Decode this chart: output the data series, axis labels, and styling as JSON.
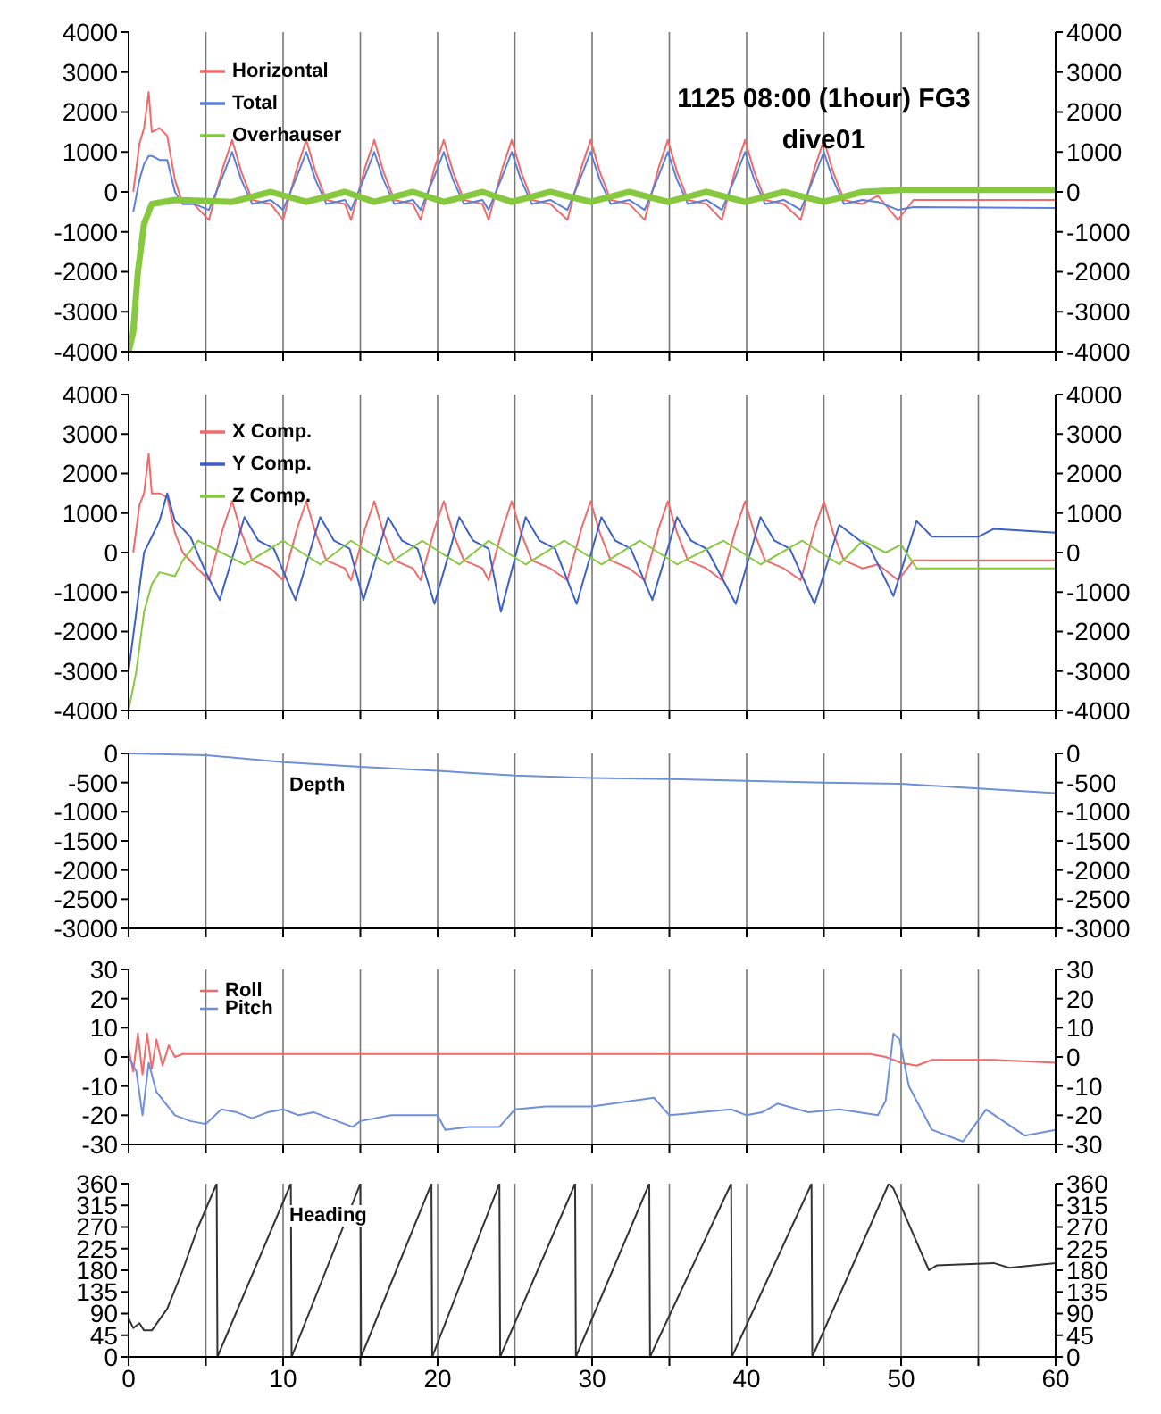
{
  "chart_data": [
    {
      "type": "line",
      "title": "1125 08:00 (1hour) FG3",
      "subtitle": "dive01",
      "legend": "top left",
      "grid": "x",
      "tick_labels": "y",
      "x": [
        0.3,
        0.7,
        1.0,
        1.3,
        1.5,
        2.0,
        2.5,
        3.0,
        3.5,
        4.2,
        5.2,
        6.1,
        6.7,
        7.3,
        8.0,
        9.2,
        10.0,
        10.9,
        11.5,
        12.1,
        12.8,
        14.0,
        14.4,
        15.3,
        15.9,
        16.5,
        17.2,
        18.4,
        18.9,
        19.8,
        20.4,
        21.0,
        21.7,
        22.9,
        23.3,
        24.2,
        24.8,
        25.4,
        26.1,
        27.3,
        28.4,
        29.3,
        29.9,
        30.5,
        31.2,
        32.4,
        33.4,
        34.3,
        34.9,
        35.5,
        36.2,
        37.4,
        38.4,
        39.3,
        39.9,
        40.5,
        41.2,
        42.4,
        43.5,
        44.4,
        45.0,
        45.6,
        46.3,
        47.5,
        48.5,
        49.8,
        50.8,
        60
      ],
      "series": [
        {
          "name": "Horizontal",
          "color": "#f06a6a",
          "values": [
            0,
            1200,
            1600,
            2500,
            1500,
            1600,
            1400,
            300,
            -300,
            -300,
            -700,
            600,
            1300,
            500,
            -200,
            -300,
            -700,
            600,
            1300,
            500,
            -200,
            -300,
            -700,
            600,
            1300,
            500,
            -200,
            -300,
            -700,
            600,
            1300,
            500,
            -200,
            -300,
            -700,
            600,
            1300,
            500,
            -200,
            -300,
            -700,
            600,
            1300,
            500,
            -200,
            -300,
            -700,
            600,
            1300,
            500,
            -200,
            -300,
            -700,
            600,
            1300,
            500,
            -200,
            -300,
            -700,
            600,
            1300,
            500,
            -200,
            -300,
            -100,
            -700,
            -200,
            -200
          ]
        },
        {
          "name": "Total",
          "color": "#5a7fd6",
          "values": [
            -500,
            300,
            700,
            900,
            900,
            800,
            800,
            0,
            -300,
            -300,
            -450,
            400,
            1000,
            300,
            -300,
            -200,
            -450,
            400,
            1000,
            300,
            -300,
            -200,
            -450,
            400,
            1000,
            300,
            -300,
            -200,
            -450,
            400,
            1000,
            300,
            -300,
            -200,
            -450,
            400,
            1000,
            300,
            -300,
            -200,
            -450,
            400,
            1000,
            300,
            -300,
            -200,
            -450,
            400,
            1000,
            300,
            -300,
            -200,
            -450,
            400,
            1000,
            300,
            -300,
            -200,
            -450,
            400,
            1000,
            300,
            -300,
            -200,
            -250,
            -450,
            -380,
            -400
          ]
        },
        {
          "name": "Overhauser",
          "color": "#86c83e",
          "x": [
            0,
            0.3,
            0.6,
            1.0,
            1.5,
            3.0,
            6.7,
            9.2,
            11.5,
            14.0,
            15.9,
            18.4,
            20.4,
            22.9,
            24.8,
            27.3,
            29.9,
            32.4,
            34.9,
            37.4,
            39.9,
            42.4,
            45.0,
            47.5,
            50,
            60
          ],
          "values": [
            -4000,
            -3500,
            -2000,
            -800,
            -300,
            -200,
            -250,
            0,
            -250,
            0,
            -250,
            0,
            -250,
            0,
            -250,
            0,
            -250,
            0,
            -250,
            0,
            -250,
            0,
            -250,
            0,
            50,
            50
          ]
        }
      ],
      "xlim": [
        0,
        60
      ],
      "xticks": [
        0,
        {
          "value": 5,
          "label": null
        },
        10,
        {
          "value": 15,
          "label": null
        },
        20,
        {
          "value": 25,
          "label": null
        },
        30,
        {
          "value": 35,
          "label": null
        },
        40,
        {
          "value": 45,
          "label": null
        },
        50,
        {
          "value": 55,
          "label": null
        },
        60
      ],
      "ylim": [
        -4000,
        4000
      ],
      "yticks": [
        -4000,
        -3000,
        -2000,
        -1000,
        0,
        1000,
        2000,
        3000,
        4000
      ],
      "y2lim": [
        -4000,
        4000
      ],
      "y2ticks": [
        -4000,
        -3000,
        -2000,
        -1000,
        0,
        1000,
        2000,
        3000,
        4000
      ]
    },
    {
      "type": "line",
      "legend": "top left",
      "grid": "x",
      "tick_labels": "y",
      "series": [
        {
          "name": "X Comp.",
          "color": "#f06a6a",
          "x": [
            0.3,
            0.7,
            1.0,
            1.3,
            1.5,
            2.0,
            2.5,
            3.0,
            3.5,
            4.2,
            5.2,
            6.1,
            6.7,
            7.3,
            8.0,
            9.2,
            10.0,
            10.9,
            11.5,
            12.1,
            12.8,
            14.0,
            14.4,
            15.3,
            15.9,
            16.5,
            17.2,
            18.4,
            18.9,
            19.8,
            20.4,
            21.0,
            21.7,
            22.9,
            23.3,
            24.2,
            24.8,
            25.4,
            26.1,
            27.3,
            28.4,
            29.3,
            29.9,
            30.5,
            31.2,
            32.4,
            33.4,
            34.3,
            34.9,
            35.5,
            36.2,
            37.4,
            38.4,
            39.3,
            39.9,
            40.5,
            41.2,
            42.4,
            43.5,
            44.4,
            45.0,
            45.6,
            46.3,
            47.5,
            48.5,
            49.8,
            50.8,
            60
          ],
          "values": [
            0,
            1200,
            1500,
            2500,
            1500,
            1500,
            1400,
            500,
            0,
            -300,
            -700,
            600,
            1300,
            500,
            -200,
            -400,
            -700,
            600,
            1300,
            500,
            -200,
            -400,
            -700,
            600,
            1300,
            500,
            -200,
            -400,
            -700,
            600,
            1300,
            500,
            -200,
            -400,
            -700,
            600,
            1300,
            500,
            -200,
            -400,
            -700,
            600,
            1300,
            500,
            -200,
            -400,
            -700,
            600,
            1300,
            500,
            -200,
            -400,
            -700,
            600,
            1300,
            500,
            -200,
            -400,
            -700,
            600,
            1300,
            500,
            -200,
            -400,
            -300,
            -700,
            -200,
            -200
          ]
        },
        {
          "name": "Y Comp.",
          "color": "#3c5fc8",
          "x": [
            0,
            0.5,
            1.0,
            2.0,
            2.5,
            3.0,
            4.0,
            5.0,
            5.9,
            7.5,
            8.4,
            9.4,
            10.8,
            12.4,
            13.3,
            14.3,
            15.2,
            16.8,
            17.7,
            18.7,
            19.8,
            21.4,
            22.3,
            23.3,
            24.1,
            25.7,
            26.6,
            27.6,
            29.0,
            30.6,
            31.5,
            32.5,
            33.9,
            35.5,
            36.4,
            37.4,
            39.3,
            40.9,
            41.8,
            42.8,
            44.4,
            46.0,
            47.0,
            48.0,
            49.5,
            51.0,
            52.0,
            55.0,
            56.0,
            60
          ],
          "values": [
            -3000,
            -1500,
            0,
            800,
            1500,
            800,
            400,
            -500,
            -1200,
            900,
            300,
            100,
            -1200,
            900,
            300,
            100,
            -1200,
            900,
            300,
            100,
            -1300,
            900,
            300,
            100,
            -1500,
            900,
            300,
            100,
            -1300,
            900,
            300,
            100,
            -1200,
            900,
            300,
            100,
            -1300,
            900,
            300,
            100,
            -1300,
            700,
            400,
            100,
            -1100,
            800,
            400,
            400,
            600,
            500
          ]
        },
        {
          "name": "Z Comp.",
          "color": "#86c83e",
          "x": [
            0,
            0.5,
            1.0,
            1.5,
            2.0,
            3.0,
            3.5,
            4.5,
            7.5,
            10.0,
            12.4,
            14.4,
            16.8,
            19.0,
            21.4,
            23.3,
            25.7,
            28.2,
            30.6,
            33.1,
            35.5,
            38.5,
            40.9,
            43.6,
            46.0,
            47.5,
            49.0,
            50.0,
            51.0,
            60
          ],
          "values": [
            -4000,
            -3000,
            -1500,
            -800,
            -500,
            -600,
            -200,
            300,
            -300,
            300,
            -300,
            300,
            -300,
            300,
            -300,
            300,
            -300,
            300,
            -300,
            300,
            -300,
            300,
            -300,
            300,
            -300,
            300,
            0,
            200,
            -400,
            -400
          ]
        }
      ],
      "xlim": [
        0,
        60
      ],
      "xticks": [
        0,
        {
          "value": 5,
          "label": null
        },
        10,
        {
          "value": 15,
          "label": null
        },
        20,
        {
          "value": 25,
          "label": null
        },
        30,
        {
          "value": 35,
          "label": null
        },
        40,
        {
          "value": 45,
          "label": null
        },
        50,
        {
          "value": 55,
          "label": null
        },
        60
      ],
      "ylim": [
        -4000,
        4000
      ],
      "yticks": [
        -4000,
        -3000,
        -2000,
        -1000,
        0,
        1000,
        2000,
        3000,
        4000
      ],
      "y2lim": [
        -4000,
        4000
      ],
      "y2ticks": [
        -4000,
        -3000,
        -2000,
        -1000,
        0,
        1000,
        2000,
        3000,
        4000
      ]
    },
    {
      "type": "line",
      "title": "Depth",
      "grid": "x",
      "tick_labels": "y",
      "series": [
        {
          "color": "#6f8fd8",
          "x": [
            0,
            5,
            10,
            15,
            20,
            25,
            30,
            35,
            40,
            45,
            50,
            55,
            60
          ],
          "values": [
            0,
            -30,
            -150,
            -230,
            -300,
            -380,
            -420,
            -440,
            -470,
            -500,
            -520,
            -600,
            -680
          ]
        }
      ],
      "xlim": [
        0,
        60
      ],
      "xticks": [
        0,
        {
          "value": 5,
          "label": null
        },
        10,
        {
          "value": 15,
          "label": null
        },
        20,
        {
          "value": 25,
          "label": null
        },
        30,
        {
          "value": 35,
          "label": null
        },
        40,
        {
          "value": 45,
          "label": null
        },
        50,
        {
          "value": 55,
          "label": null
        },
        60
      ],
      "ylim": [
        -3000,
        0
      ],
      "yticks": [
        -3000,
        -2500,
        -2000,
        -1500,
        -1000,
        -500,
        0
      ],
      "y2lim": [
        -3000,
        0
      ],
      "y2ticks": [
        -3000,
        -2500,
        -2000,
        -1500,
        -1000,
        -500,
        0
      ]
    },
    {
      "type": "line",
      "legend": "top left",
      "grid": "x",
      "tick_labels": "y",
      "series": [
        {
          "name": "Roll",
          "color": "#f06a6a",
          "x": [
            0,
            0.3,
            0.6,
            0.9,
            1.2,
            1.5,
            1.8,
            2.2,
            2.6,
            3.0,
            3.5,
            10,
            20,
            30,
            40,
            48,
            49,
            50,
            51,
            52,
            56,
            60
          ],
          "values": [
            3,
            -5,
            8,
            -6,
            8,
            -4,
            6,
            -3,
            4,
            0,
            1,
            1,
            1,
            1,
            1,
            1,
            0,
            -2,
            -3,
            -1,
            -1,
            -2
          ]
        },
        {
          "name": "Pitch",
          "color": "#6f8fd8",
          "x": [
            0,
            0.5,
            0.9,
            1.3,
            1.8,
            3,
            4,
            5,
            6,
            7,
            8,
            9,
            10,
            11,
            12,
            14.5,
            15,
            17,
            20,
            20.5,
            22,
            24,
            25,
            27,
            30,
            34,
            35,
            37,
            39,
            40,
            41,
            42,
            44,
            46,
            48.5,
            49,
            49.5,
            49.9,
            50.5,
            52,
            54,
            55.5,
            58,
            60
          ],
          "values": [
            0,
            -5,
            -20,
            -2,
            -12,
            -20,
            -22,
            -23,
            -18,
            -19,
            -21,
            -19,
            -18,
            -20,
            -19,
            -24,
            -22,
            -20,
            -20,
            -25,
            -24,
            -24,
            -18,
            -17,
            -17,
            -14,
            -20,
            -19,
            -18,
            -20,
            -19,
            -16,
            -19,
            -18,
            -20,
            -15,
            8,
            6,
            -10,
            -25,
            -29,
            -18,
            -27,
            -25
          ]
        }
      ],
      "xlim": [
        0,
        60
      ],
      "xticks": [
        0,
        {
          "value": 5,
          "label": null
        },
        10,
        {
          "value": 15,
          "label": null
        },
        20,
        {
          "value": 25,
          "label": null
        },
        30,
        {
          "value": 35,
          "label": null
        },
        40,
        {
          "value": 45,
          "label": null
        },
        50,
        {
          "value": 55,
          "label": null
        },
        60
      ],
      "ylim": [
        -30,
        30
      ],
      "yticks": [
        -30,
        -20,
        -10,
        0,
        10,
        20,
        30
      ],
      "y2lim": [
        -30,
        30
      ],
      "y2ticks": [
        -30,
        -20,
        -10,
        0,
        10,
        20,
        30
      ]
    },
    {
      "type": "line",
      "title": "Heading",
      "grid": "x",
      "series": [
        {
          "color": "#333333",
          "x": [
            0,
            0.3,
            0.7,
            1,
            1.5,
            2.5,
            3.5,
            4.5,
            5.7,
            5.75,
            10.5,
            10.55,
            15,
            15.05,
            19.6,
            19.65,
            24,
            24.05,
            28.9,
            28.95,
            33.7,
            33.75,
            39,
            39.05,
            44.2,
            44.25,
            49.2,
            49.5,
            51.8,
            52.3,
            56,
            57,
            60
          ],
          "values": [
            80,
            60,
            70,
            55,
            55,
            100,
            180,
            270,
            360,
            0,
            360,
            0,
            360,
            0,
            360,
            0,
            360,
            0,
            360,
            0,
            360,
            0,
            360,
            0,
            360,
            0,
            360,
            350,
            180,
            190,
            195,
            185,
            195
          ]
        }
      ],
      "xlim": [
        0,
        60
      ],
      "xticks": [
        0,
        {
          "value": 5,
          "label": null
        },
        10,
        {
          "value": 15,
          "label": null
        },
        20,
        {
          "value": 25,
          "label": null
        },
        30,
        {
          "value": 35,
          "label": null
        },
        40,
        {
          "value": 45,
          "label": null
        },
        50,
        {
          "value": 55,
          "label": null
        },
        60
      ],
      "ylim": [
        0,
        360
      ],
      "yticks": [
        0,
        45,
        90,
        135,
        180,
        225,
        270,
        315,
        360
      ],
      "y2lim": [
        0,
        360
      ],
      "y2ticks": [
        0,
        45,
        90,
        135,
        180,
        225,
        270,
        315,
        360
      ]
    }
  ]
}
